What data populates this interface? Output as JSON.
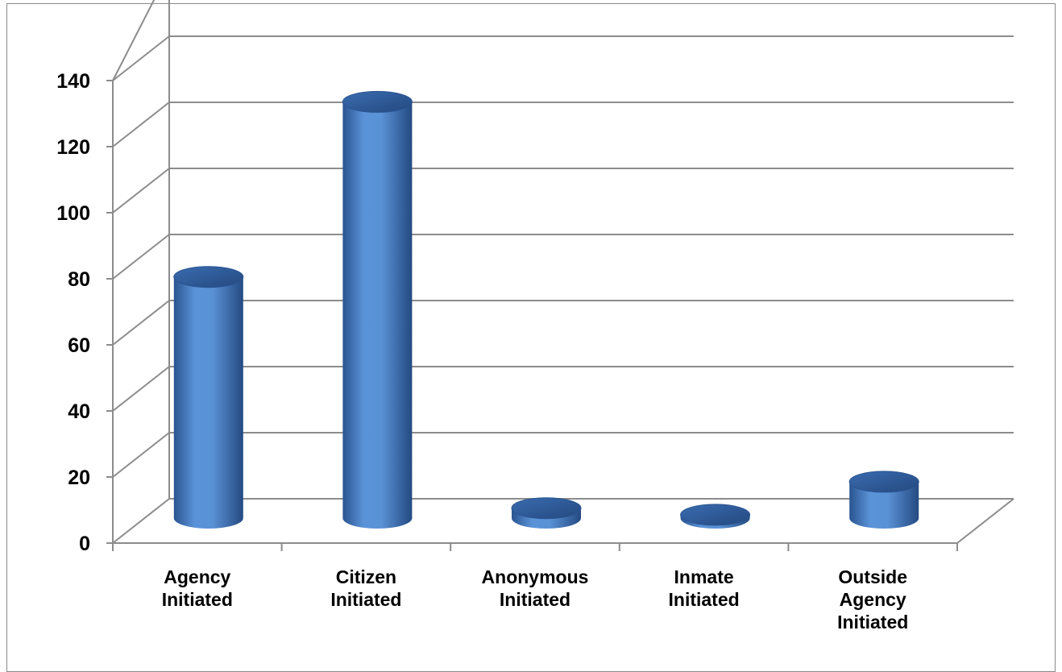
{
  "chart_data": {
    "type": "bar",
    "style": "3d-cylinder",
    "title": "",
    "xlabel": "",
    "ylabel": "",
    "ylim": [
      0,
      140
    ],
    "yticks": [
      "0",
      "20",
      "40",
      "60",
      "80",
      "100",
      "120",
      "140"
    ],
    "grid": true,
    "legend": "none",
    "categories": [
      [
        "Agency",
        "Initiated"
      ],
      [
        "Citizen",
        "Initiated"
      ],
      [
        "Anonymous",
        "Initiated"
      ],
      [
        "Inmate",
        "Initiated"
      ],
      [
        "Outside",
        "Agency",
        "Initiated"
      ]
    ],
    "series": [
      {
        "values": [
          73,
          126,
          3,
          1,
          11
        ]
      }
    ],
    "colors": {
      "bar_light": "#5b93d8",
      "bar_mid": "#3d72bd",
      "bar_dark": "#264d86",
      "bar_top": "#2f5d9e",
      "grid": "#8c8c8c"
    }
  }
}
